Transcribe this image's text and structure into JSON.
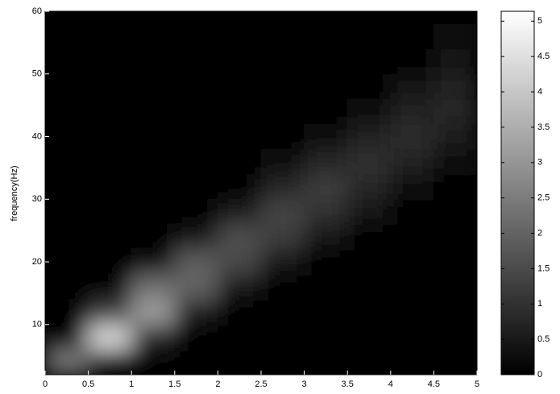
{
  "chart_data": {
    "type": "heatmap",
    "ylabel": "frequency(Hz)",
    "x": [
      0.25,
      0.75,
      1.25,
      1.75,
      2.25,
      2.75,
      3.25,
      3.75,
      4.25,
      4.75
    ],
    "y": [
      4,
      8,
      12,
      16,
      20,
      24,
      28,
      32,
      36,
      40,
      44,
      48,
      52,
      56,
      60
    ],
    "z": [
      [
        2.5,
        0.3,
        0,
        0,
        0,
        0,
        0,
        0,
        0,
        0
      ],
      [
        0.1,
        4.4,
        0.8,
        0,
        0,
        0,
        0,
        0,
        0,
        0
      ],
      [
        0,
        1.3,
        3.2,
        0.6,
        0.1,
        0,
        0,
        0,
        0,
        0
      ],
      [
        0,
        0,
        2.3,
        2.0,
        0.5,
        0.1,
        0,
        0,
        0,
        0
      ],
      [
        0,
        0,
        0.3,
        1.9,
        1.5,
        0.5,
        0.1,
        0,
        0,
        0
      ],
      [
        0,
        0,
        0,
        0.5,
        1.6,
        1.2,
        0.4,
        0.1,
        0,
        0
      ],
      [
        0,
        0,
        0,
        0,
        0.6,
        1.4,
        1.0,
        0.4,
        0.1,
        0
      ],
      [
        0,
        0,
        0,
        0,
        0.1,
        0.8,
        1.2,
        0.8,
        0.3,
        0.1
      ],
      [
        0,
        0,
        0,
        0,
        0,
        0.2,
        0.8,
        1.0,
        0.7,
        0.3
      ],
      [
        0,
        0,
        0,
        0,
        0,
        0,
        0.3,
        0.7,
        0.9,
        0.6
      ],
      [
        0,
        0,
        0,
        0,
        0,
        0,
        0,
        0.3,
        0.7,
        0.8
      ],
      [
        0,
        0,
        0,
        0,
        0,
        0,
        0,
        0.1,
        0.4,
        0.7
      ],
      [
        0,
        0,
        0,
        0,
        0,
        0,
        0,
        0,
        0.1,
        0.4
      ],
      [
        0,
        0,
        0,
        0,
        0,
        0,
        0,
        0,
        0,
        0.2
      ],
      [
        0,
        0,
        0,
        0,
        0,
        0,
        0,
        0,
        0,
        0.1
      ]
    ],
    "xlim": [
      0,
      5
    ],
    "xticks": [
      0,
      0.5,
      1,
      1.5,
      2,
      2.5,
      3,
      3.5,
      4,
      4.5,
      5
    ],
    "ylim": [
      2,
      60
    ],
    "yticks": [
      10,
      20,
      30,
      40,
      50,
      60
    ],
    "colormap": "gray",
    "clim": [
      0,
      5.14
    ],
    "cticks": [
      0,
      0.5,
      1,
      1.5,
      2,
      2.5,
      3,
      3.5,
      4,
      4.5,
      5
    ]
  }
}
